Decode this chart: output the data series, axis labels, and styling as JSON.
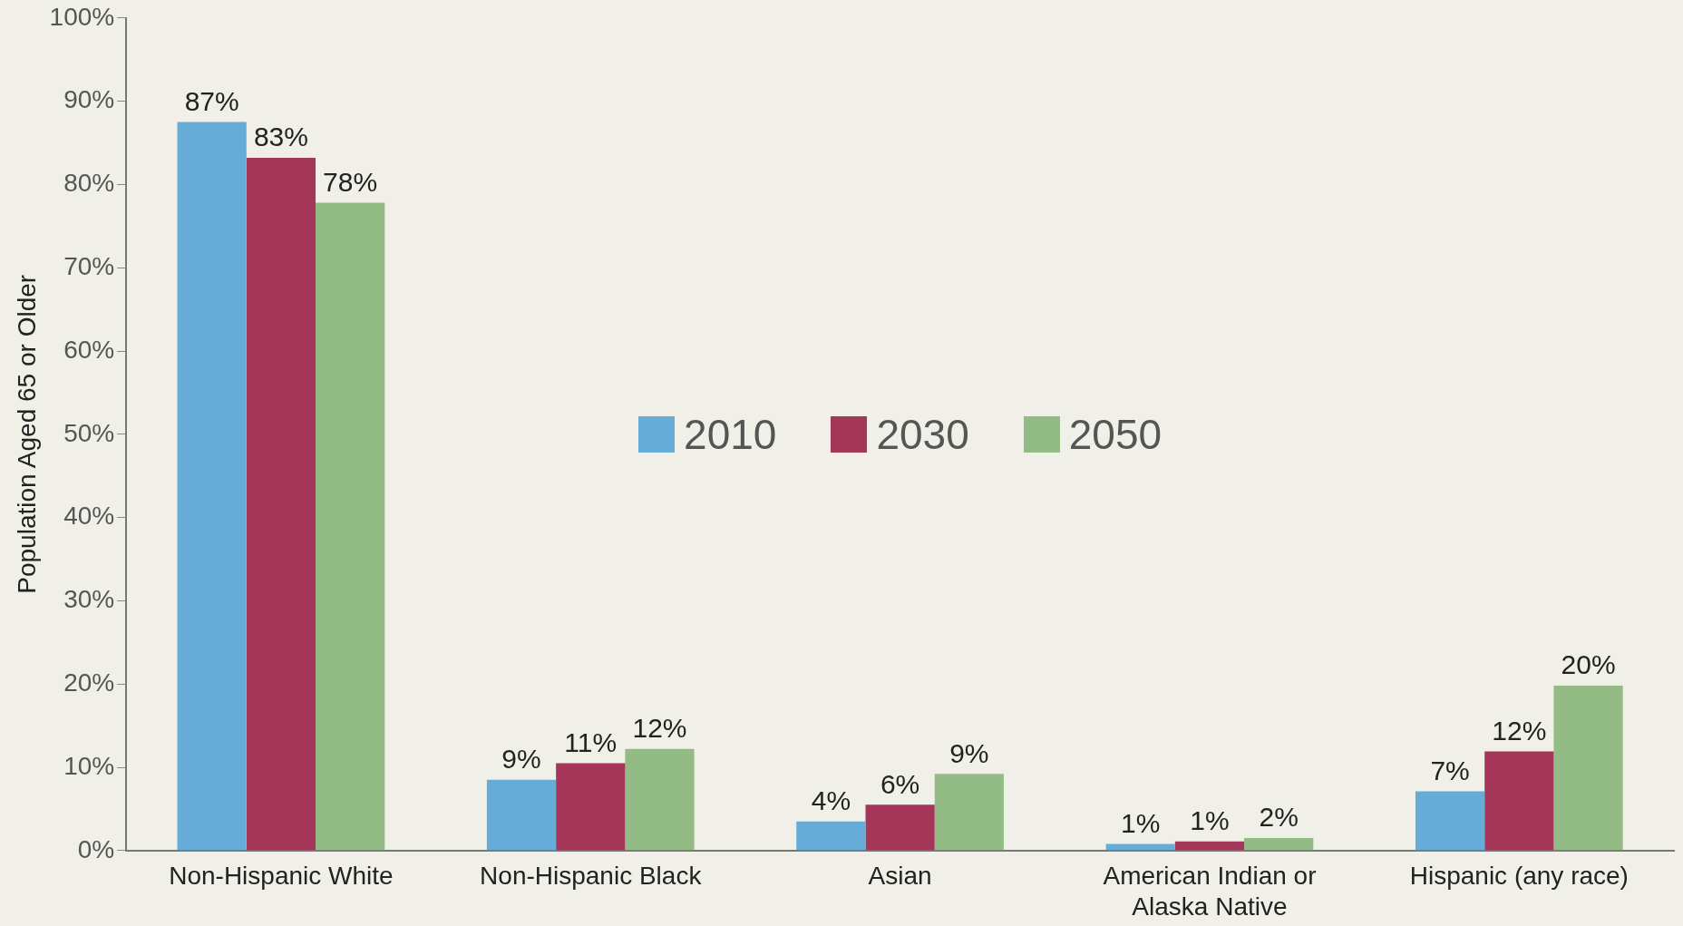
{
  "chart_data": {
    "type": "bar",
    "ylabel": "Population Aged 65 or Older",
    "categories": [
      "Non-Hispanic White",
      "Non-Hispanic Black",
      "Asian",
      "American Indian or Alaska Native",
      "Hispanic (any race)"
    ],
    "series": [
      {
        "name": "2010",
        "color": "#65acd8",
        "values": [
          87.5,
          8.5,
          3.5,
          0.8,
          7.1
        ],
        "value_labels": [
          "87%",
          "9%",
          "4%",
          "1%",
          "7%"
        ]
      },
      {
        "name": "2030",
        "color": "#a4365a",
        "values": [
          83.2,
          10.5,
          5.5,
          1.1,
          11.9
        ],
        "value_labels": [
          "83%",
          "11%",
          "6%",
          "1%",
          "12%"
        ]
      },
      {
        "name": "2050",
        "color": "#93bb86",
        "values": [
          77.8,
          12.2,
          9.2,
          1.5,
          19.8
        ],
        "value_labels": [
          "78%",
          "12%",
          "9%",
          "2%",
          "20%"
        ]
      }
    ],
    "ylim": [
      0,
      100
    ],
    "yticks": [
      {
        "value": 0,
        "label": "0%"
      },
      {
        "value": 10,
        "label": "10%"
      },
      {
        "value": 20,
        "label": "20%"
      },
      {
        "value": 30,
        "label": "30%"
      },
      {
        "value": 40,
        "label": "40%"
      },
      {
        "value": 50,
        "label": "50%"
      },
      {
        "value": 60,
        "label": "60%"
      },
      {
        "value": 70,
        "label": "70%"
      },
      {
        "value": 80,
        "label": "80%"
      },
      {
        "value": 90,
        "label": "90%"
      },
      {
        "value": 100,
        "label": "100%"
      }
    ],
    "grid": false,
    "legend": "center"
  }
}
